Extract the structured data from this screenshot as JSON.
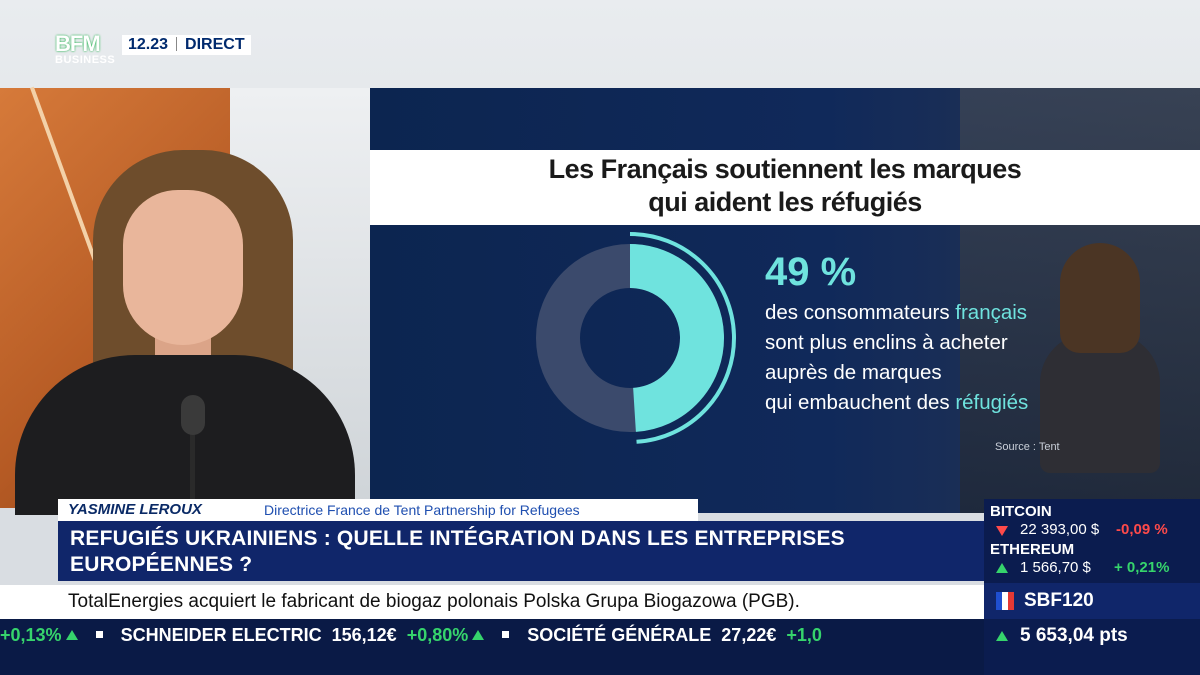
{
  "broadcast": {
    "logo_line1": "BFM",
    "logo_line2": "BUSINESS",
    "time": "12.23",
    "live_label": "DIRECT"
  },
  "infographic": {
    "title_line1": "Les Français soutiennent les marques",
    "title_line2": "qui aident les réfugiés",
    "percent": "49 %",
    "percent_value": 49,
    "desc_line1_a": "des consommateurs ",
    "desc_line1_b": "français",
    "desc_line2": "sont plus enclins à acheter",
    "desc_line3": "auprès de marques",
    "desc_line4_a": "qui embauchent des ",
    "desc_line4_b": "réfugiés",
    "source": "Source : Tent",
    "accent_color": "#6fe3de"
  },
  "lower_third": {
    "guest_name": "YASMINE LEROUX",
    "guest_role": "Directrice France de Tent Partnership for Refugees",
    "headline_line1": "REFUGIÉS UKRAINIENS : QUELLE INTÉGRATION DANS LES ENTREPRISES",
    "headline_line2": "EUROPÉENNES ?",
    "news": "TotalEnergies acquiert le fabricant de biogaz polonais Polska Grupa Biogazowa (PGB)."
  },
  "ticker": {
    "lead_change": "+0,13%",
    "item1_name": "SCHNEIDER ELECTRIC",
    "item1_price": "156,12€",
    "item1_change": "+0,80%",
    "item2_name": "SOCIÉTÉ GÉNÉRALE",
    "item2_price": "27,22€",
    "item2_change": "+1,0"
  },
  "market": {
    "btc_name": "BITCOIN",
    "btc_value": "22 393,00 $",
    "btc_change": "-0,09 %",
    "eth_name": "ETHEREUM",
    "eth_value": "1 566,70 $",
    "eth_change": "+ 0,21%",
    "index_name": "SBF120",
    "index_value": "5 653,04 pts",
    "down_color": "#ff4a4a",
    "up_color": "#36d46c"
  }
}
